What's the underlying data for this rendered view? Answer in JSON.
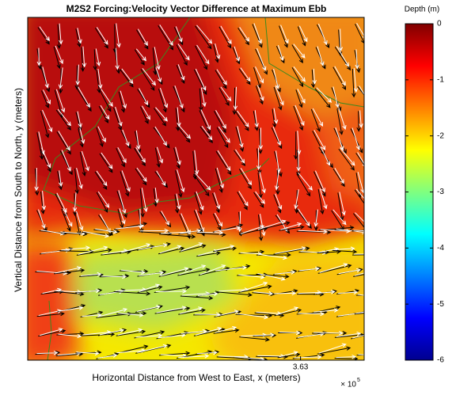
{
  "chart_data": {
    "type": "contour-quiver",
    "title": "M2S2 Forcing:Velocity Vector Difference at Maximum Ebb",
    "x_label": "Horizontal Distance from West to East, x (meters)",
    "y_label": "Vertical Distance from South to North, y (meters)",
    "xlim": [
      3.6,
      3.637
    ],
    "xticks": [
      3.63
    ],
    "x_exponent": "× 10",
    "x_exponent_power": "5",
    "colorbar": {
      "label": "Depth (m)",
      "clim": [
        -6,
        0
      ],
      "ticks": [
        0,
        -1,
        -2,
        -3,
        -4,
        -5,
        -6
      ],
      "colormap": "jet"
    }
  }
}
